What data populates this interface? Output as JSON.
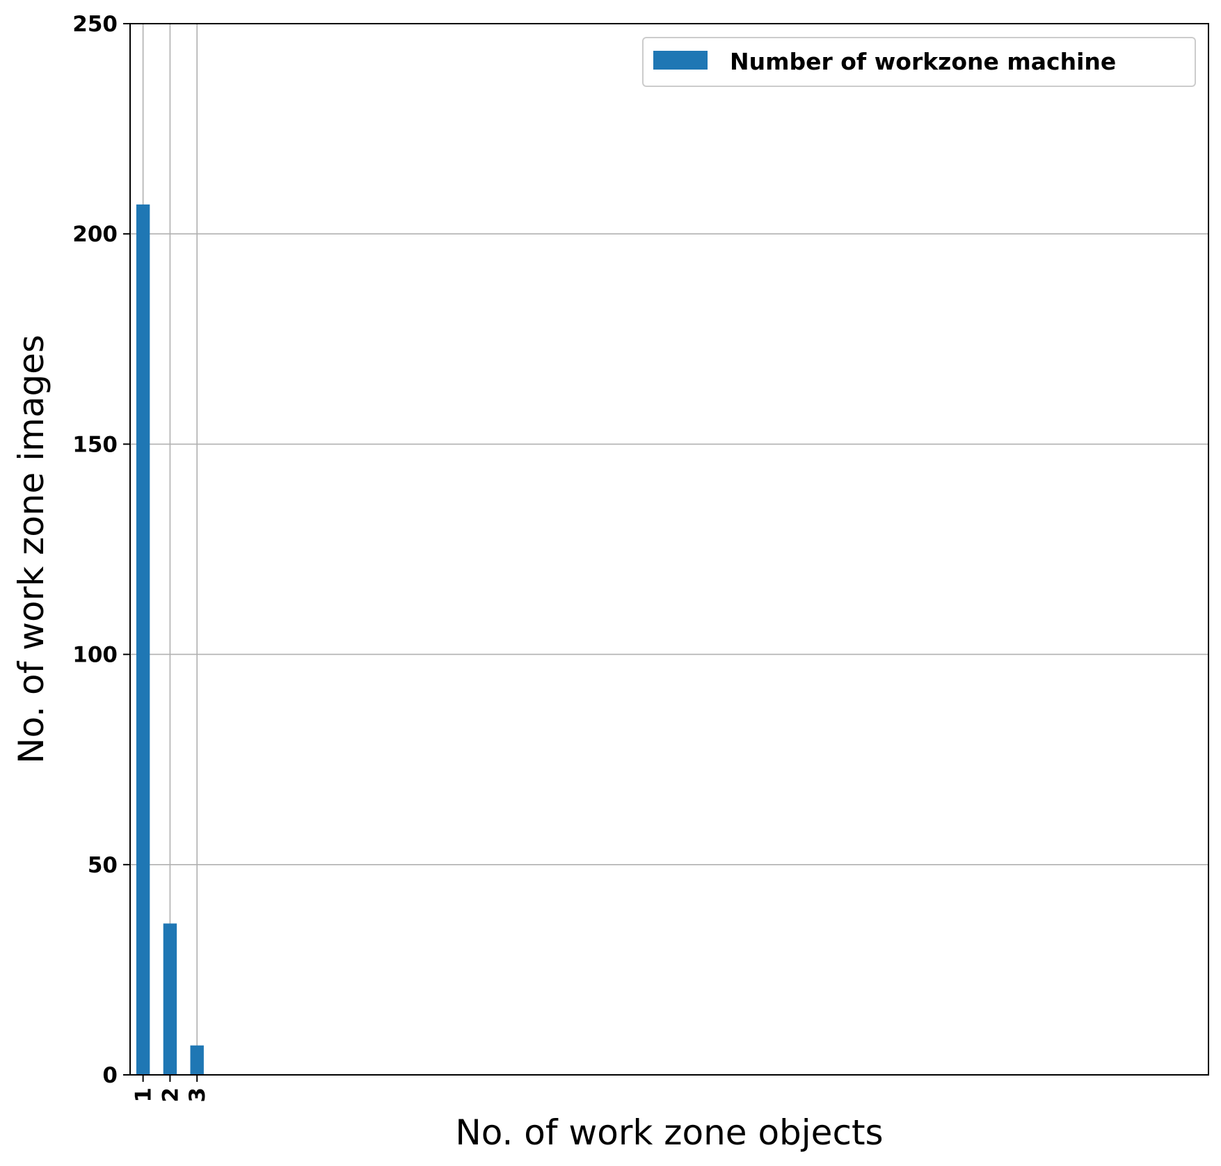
{
  "chart_data": {
    "type": "bar",
    "categories": [
      "1",
      "2",
      "3"
    ],
    "x": [
      1,
      2,
      3
    ],
    "series": [
      {
        "name": "Number of workzone machine",
        "values": [
          207,
          36,
          7
        ]
      }
    ],
    "xlabel": "No. of work zone objects",
    "ylabel": "No. of work zone images",
    "ylim": [
      0,
      250
    ],
    "yticks": [
      0,
      50,
      100,
      150,
      200,
      250
    ],
    "grid": true,
    "legend_position": "upper right",
    "bar_color": "#1f77b4"
  }
}
